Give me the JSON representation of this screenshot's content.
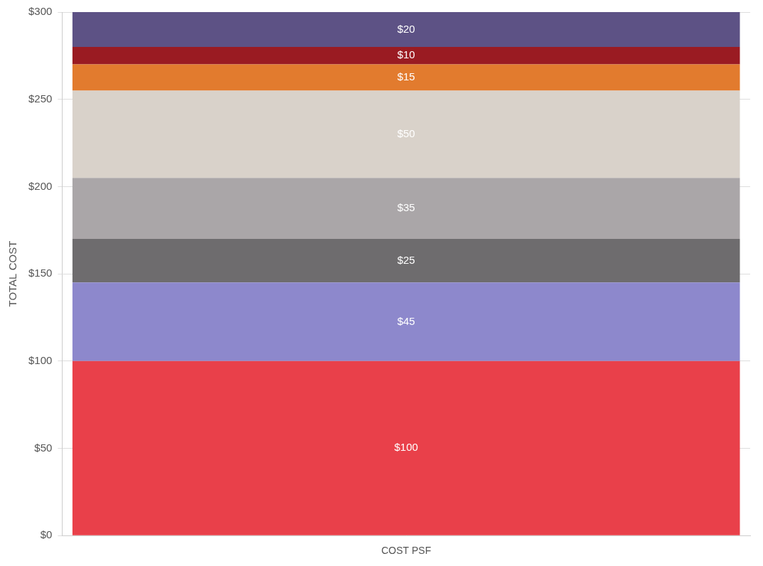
{
  "chart_data": {
    "type": "bar",
    "stacked": true,
    "categories": [
      null
    ],
    "series": [
      {
        "values": [
          100
        ],
        "value_labels": [
          "$100"
        ],
        "color": "#e9404a"
      },
      {
        "values": [
          45
        ],
        "value_labels": [
          "$45"
        ],
        "color": "#8d88cc"
      },
      {
        "values": [
          25
        ],
        "value_labels": [
          "$25"
        ],
        "color": "#6e6c6e"
      },
      {
        "values": [
          35
        ],
        "value_labels": [
          "$35"
        ],
        "color": "#aaa6a8"
      },
      {
        "values": [
          50
        ],
        "value_labels": [
          "$50"
        ],
        "color": "#d9d2ca"
      },
      {
        "values": [
          15
        ],
        "value_labels": [
          "$15"
        ],
        "color": "#e27b2e"
      },
      {
        "values": [
          10
        ],
        "value_labels": [
          "$10"
        ],
        "color": "#9a1b22"
      },
      {
        "values": [
          20
        ],
        "value_labels": [
          "$20"
        ],
        "color": "#5d5285"
      }
    ],
    "x_label": "COST PSF",
    "y_label": "TOTAL COST",
    "ylim": [
      0,
      300
    ],
    "yticks": [
      {
        "value": 0,
        "label": "$0"
      },
      {
        "value": 50,
        "label": "$50"
      },
      {
        "value": 100,
        "label": "$100"
      },
      {
        "value": 150,
        "label": "$150"
      },
      {
        "value": 200,
        "label": "$200"
      },
      {
        "value": 250,
        "label": "$250"
      },
      {
        "value": 300,
        "label": "$300"
      }
    ],
    "grid": true,
    "data_labels": true,
    "tick_labels": "y"
  }
}
